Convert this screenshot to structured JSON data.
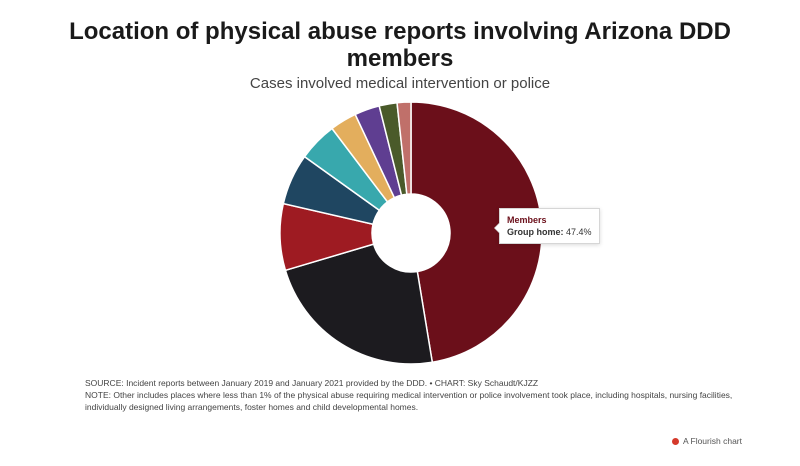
{
  "header": {
    "title": "Location of physical abuse reports involving Arizona DDD members",
    "subtitle": "Cases involved medical intervention or police"
  },
  "chart_data": {
    "type": "pie",
    "donut": true,
    "title": "Location of physical abuse reports involving Arizona DDD members",
    "subtitle": "Cases involved medical intervention or police",
    "series_name": "Members",
    "slices": [
      {
        "value": 47.4,
        "color": "#6b0f1a"
      },
      {
        "value": 23.0,
        "color": "#1c1b1f"
      },
      {
        "value": 8.2,
        "color": "#9e1b22"
      },
      {
        "value": 6.3,
        "color": "#1f4661"
      },
      {
        "value": 4.8,
        "color": "#38a8ad"
      },
      {
        "value": 3.3,
        "color": "#e3ae5d"
      },
      {
        "value": 3.1,
        "color": "#5f3e91"
      },
      {
        "value": 2.2,
        "color": "#4a5a2a"
      },
      {
        "value": 1.7,
        "color": "#c0706a"
      }
    ]
  },
  "tooltip": {
    "title": "Members",
    "label": "Group home:",
    "value": "47.4%"
  },
  "footer": {
    "source": "SOURCE: Incident reports between January 2019 and January 2021 provided by the DDD. • CHART: Sky Schaudt/KJZZ",
    "note": "NOTE: Other includes places where less than 1% of the physical abuse requiring medical intervention or police involvement took place, including hospitals, nursing facilities, individually designed living arrangements, foster homes and child developmental homes."
  },
  "brand": {
    "label": "A Flourish chart",
    "icon": "flourish-logo-icon",
    "color": "#d5392b"
  }
}
